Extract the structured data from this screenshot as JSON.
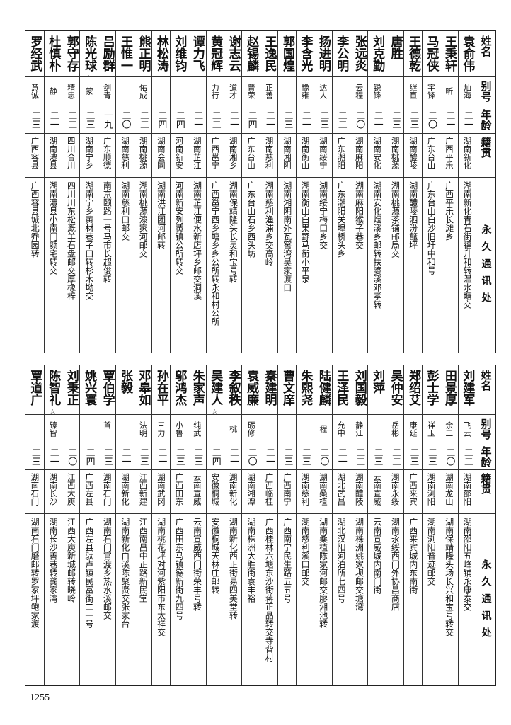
{
  "headers": {
    "name": "姓名",
    "alias": "别号",
    "age": "年龄",
    "origin": "籍贯",
    "address": "永久通讯处"
  },
  "top_rows": [
    {
      "name": "袁俞伟",
      "alias": "灿海",
      "age": "二一",
      "origin": "湖南新化",
      "address": "湖南新化青石街福升和转温水塘交"
    },
    {
      "name": "王秉轩",
      "alias": "昕",
      "age": "二一",
      "origin": "广西平乐",
      "address": "广西平乐长滩乡"
    },
    {
      "name": "马冠侠",
      "alias": "宇锋",
      "age": "二〇",
      "origin": "广东台山",
      "address": "广东台山白沙旧圩中和号"
    },
    {
      "name": "王德乾",
      "alias": "继直",
      "age": "二三",
      "origin": "湖南醴陵",
      "address": "湖南醴陵泗汾鼇坪"
    },
    {
      "name": "唐胜",
      "alias": "",
      "age": "二三",
      "origin": "湖南桃源",
      "address": "湖南桃源茶铺邮局交"
    },
    {
      "name": "刘克勤",
      "alias": "锐锋",
      "age": "二一",
      "origin": "湖南安化",
      "address": "湖南安化烟溪乡邮转扶婆溪邓孝转"
    },
    {
      "name": "张远炎",
      "alias": "云程",
      "age": "二〇",
      "origin": "湖南麻阳",
      "address": "湖南麻阳猴子巷交"
    },
    {
      "name": "李公明",
      "alias": "",
      "age": "二二",
      "origin": "广东潮阳",
      "address": "广东潮阳关埠桥头乡"
    },
    {
      "name": "扬进明",
      "alias": "达人",
      "age": "二三",
      "origin": "湖南绥宁",
      "address": "湖南绥宁梅口乡交"
    },
    {
      "name": "李含光",
      "alias": "豫雍",
      "age": "二一",
      "origin": "湖南衡山",
      "address": "湖南衡山白果野马衔小平泉"
    },
    {
      "name": "郭国煌",
      "alias": "",
      "age": "二三",
      "origin": "湖南湘阴",
      "address": "湖南湘阴南外瓦窖湾吴家渡口"
    },
    {
      "name": "王逸民",
      "alias": "正善",
      "age": "二一",
      "origin": "湖南慈利",
      "address": "湖南慈利渔浦乡交高岭"
    },
    {
      "name": "赵锡麟",
      "alias": "普荣",
      "age": "二四",
      "origin": "广东台山",
      "address": "广东台山石乡西头坊"
    },
    {
      "name": "谢志云",
      "alias": "道才",
      "age": "二一",
      "origin": "湖南湘乡",
      "address": "湖南保靖隆头长灵和宝号转"
    },
    {
      "name": "黄冠辉",
      "alias": "力行",
      "age": "二二",
      "origin": "广西邕宁",
      "address": "广西邕宁西乡塘乡乡公所转永和村公所"
    },
    {
      "name": "谭力飞",
      "alias": "",
      "age": "二一",
      "origin": "湖南芷江",
      "address": "湖南芷江便水新店坪乡邮交洞溪"
    },
    {
      "name": "刘维钧",
      "alias": "",
      "age": "二四",
      "origin": "河南新安",
      "address": "河南新安列黄镇公所转交"
    },
    {
      "name": "林松涛",
      "alias": "",
      "age": "二四",
      "origin": "湖南会同",
      "address": "湖南洪江团河邮转"
    },
    {
      "name": "熊正明",
      "alias": "佑成",
      "age": "二二",
      "origin": "湖南桃源",
      "address": "湖南桃源漆家河邮交"
    },
    {
      "name": "王惟一",
      "alias": "",
      "age": "二〇",
      "origin": "湖南慈利",
      "address": "湖南慈利口邮交"
    },
    {
      "name": "吕励群",
      "alias": "剑青",
      "age": "一九",
      "origin": "广东顺德",
      "address": "南京颐路一号马市长超俊转"
    },
    {
      "name": "陈光球",
      "note": "女",
      "alias": "蒙",
      "age": "二三",
      "origin": "湖南宁乡",
      "address": "湖南宁乡黄材巷子口转杉木坳交"
    },
    {
      "name": "郭守存",
      "alias": "精忠",
      "age": "二二",
      "origin": "四川合川",
      "address": "四川川东松溉羊石盘邮交厚橡梓"
    },
    {
      "name": "杜慎朴",
      "alias": "静",
      "age": "二一",
      "origin": "湖南澧县",
      "address": "湖南澧县小南门颜宅转交"
    },
    {
      "name": "罗经武",
      "alias": "意诚",
      "age": "二三",
      "origin": "广西容县",
      "address": "广西容县城北乔园转"
    }
  ],
  "bottom_rows": [
    {
      "name": "刘建军",
      "alias": "飞云",
      "age": "二二",
      "origin": "湖南邵阳",
      "address": "湖南邵阳五峰铺永康泰交"
    },
    {
      "name": "田景厚",
      "alias": "余三",
      "age": "二〇",
      "origin": "湖南龙山",
      "address": "湖南保靖隆头场长兴和宝号转交"
    },
    {
      "name": "彭士学",
      "alias": "祥玉",
      "age": "二三",
      "origin": "湖南浏阳",
      "address": "湖南浏阳普迹邮交"
    },
    {
      "name": "郑绍艾",
      "alias": "康延",
      "age": "二三",
      "origin": "广西来宾",
      "address": "广西来宾城内东南街"
    },
    {
      "name": "吴仲安",
      "alias": "岳彬",
      "age": "二二",
      "origin": "湖南永绥",
      "address": "湖南永绥西门外协昌商店"
    },
    {
      "name": "刘萍",
      "alias": "",
      "age": "二三",
      "origin": "云南宣威",
      "address": "云南宣威城内南门街"
    },
    {
      "name": "刘国毅",
      "alias": "静江",
      "age": "二二",
      "origin": "湖南醴陵",
      "address": "湖南株洲姚家坝邮交塘湾"
    },
    {
      "name": "王泽民",
      "alias": "允中",
      "age": "二一",
      "origin": "湖北武昌",
      "address": "湖北汉阳河泊所七四号"
    },
    {
      "name": "陆健麟",
      "alias": "程",
      "age": "二〇",
      "origin": "湖南桑植",
      "address": "湖南桑植陈家河邮交廖湘池转"
    },
    {
      "name": "朱熙尧",
      "alias": "",
      "age": "二三",
      "origin": "湖南慈利",
      "address": "湖南慈利溪口邮交"
    },
    {
      "name": "曹文庠",
      "alias": "",
      "age": "二三",
      "origin": "广西南宁",
      "address": "广西南宁民生路五五号"
    },
    {
      "name": "秦建明",
      "alias": "",
      "age": "二一",
      "origin": "广西临桂",
      "address": "广西桂林六塘东沙街蒋正晶转交寺背村"
    },
    {
      "name": "袁威廉",
      "alias": "砺修",
      "age": "二〇",
      "origin": "湖南湘潭",
      "address": "湖南株洲大胜街袁丰裕"
    },
    {
      "name": "李叙秩",
      "alias": "桃",
      "age": "二一",
      "origin": "湖南新化",
      "address": "湖南新化西正街易四美堂转"
    },
    {
      "name": "吴建人",
      "note": "女",
      "alias": "",
      "age": "二四",
      "origin": "安徽桐城",
      "address": "安徽桐城天林庄邮转"
    },
    {
      "name": "朱家声",
      "alias": "纯武",
      "age": "二三",
      "origin": "云南宣威",
      "address": "云南宣威西门街荣丰号转"
    },
    {
      "name": "邬鸿杰",
      "alias": "小鲁",
      "age": "二三",
      "origin": "广西田东",
      "address": "广西田东马镇德新街九四号"
    },
    {
      "name": "孙在平",
      "alias": "三力",
      "age": "二一",
      "origin": "湖南武冈",
      "address": "湖南桃花坪对河紫阳市东太祥交"
    },
    {
      "name": "邓皋如",
      "alias": "法明",
      "age": "二三",
      "origin": "江西新建",
      "address": "江西南昌中正路新民堂"
    },
    {
      "name": "张毅",
      "alias": "",
      "age": "二一",
      "origin": "湖南新化",
      "address": "湖南新化白溪陈聚贤交张家台"
    },
    {
      "name": "覃伯学",
      "alias": "首一",
      "age": "二三",
      "origin": "湖南石门",
      "address": "湖南石门官渡乡热水溪邮交"
    },
    {
      "name": "姚兴寰",
      "alias": "",
      "age": "二四",
      "origin": "广西左县",
      "address": "广西左县驮卢镇民富街二一号"
    },
    {
      "name": "刘秉正",
      "alias": "",
      "age": "二〇",
      "origin": "江西大庾",
      "address": "江西大庾新城邮转晓岭"
    },
    {
      "name": "陈智礼",
      "note": "女",
      "alias": "臻智",
      "age": "二一",
      "origin": "湖南长沙",
      "address": "湖南长沙善巷转龚家湾"
    },
    {
      "name": "覃道广",
      "alias": "",
      "age": "二三",
      "origin": "湖南石门",
      "address": "湖南石门磨邮转罗家坪鲍家渡"
    }
  ],
  "page_number": "1255"
}
